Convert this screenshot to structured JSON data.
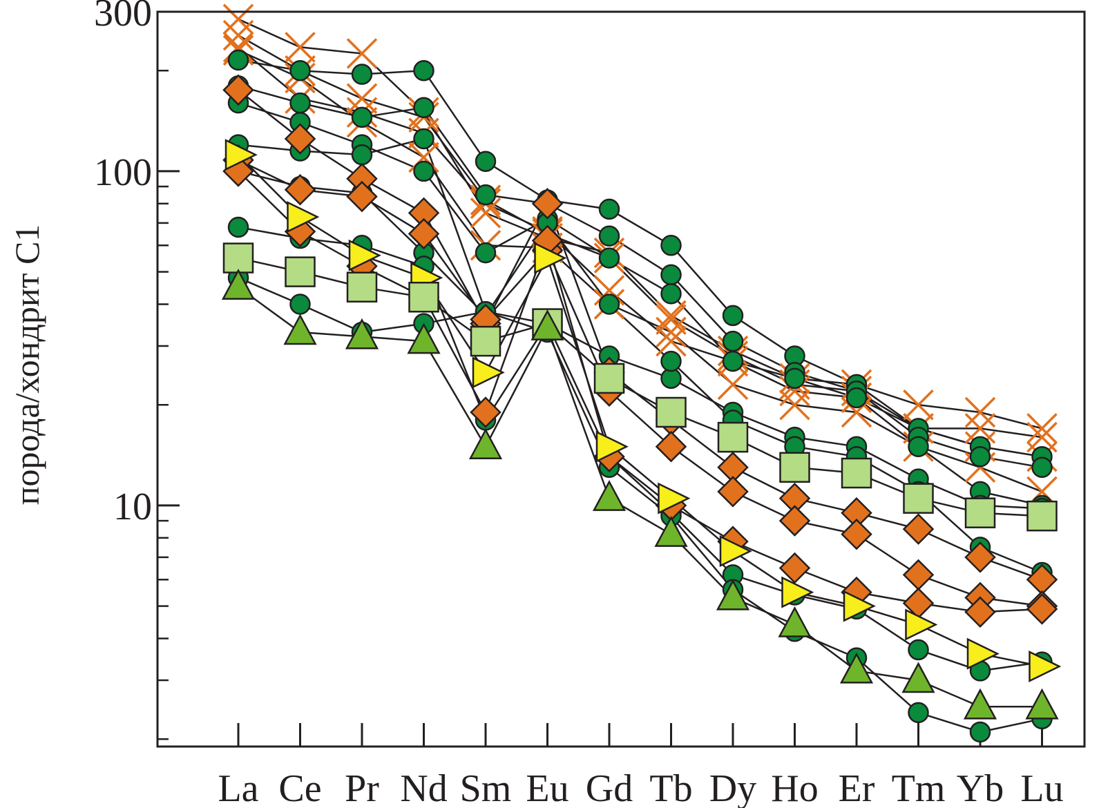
{
  "chart_data": {
    "type": "line",
    "title": "",
    "xlabel": "",
    "ylabel": "порода/хондрит С1",
    "yscale": "log",
    "ylim": [
      1.9,
      300
    ],
    "ytick_labels": [
      {
        "value": 300,
        "label": "300"
      },
      {
        "value": 100,
        "label": "100"
      },
      {
        "value": 10,
        "label": "10"
      }
    ],
    "yminor_ticks": [
      2,
      3,
      4,
      5,
      6,
      7,
      8,
      9,
      20,
      30,
      40,
      50,
      60,
      70,
      80,
      90,
      200
    ],
    "categories": [
      "La",
      "Ce",
      "Pr",
      "Nd",
      "Sm",
      "Eu",
      "Gd",
      "Tb",
      "Dy",
      "Ho",
      "Er",
      "Tm",
      "Yb",
      "Lu"
    ],
    "grid": false,
    "colors": {
      "line": "#231f20",
      "dark_green": "#0a8a3c",
      "orange": "#e2711d",
      "yellow": "#f7ee1c",
      "light_green": "#b3dc84",
      "lime_green": "#6fb52c"
    },
    "series": [
      {
        "marker": "x",
        "color": "#e2711d",
        "values": [
          285,
          235,
          225,
          150,
          75,
          63,
          57,
          37,
          29,
          24,
          23,
          20,
          19,
          17
        ]
      },
      {
        "marker": "x",
        "color": "#e2711d",
        "values": [
          255,
          200,
          165,
          145,
          82,
          65,
          55,
          36,
          28,
          23,
          22,
          17,
          17,
          16
        ]
      },
      {
        "marker": "x",
        "color": "#e2711d",
        "values": [
          235,
          165,
          150,
          130,
          80,
          66,
          44,
          31,
          27,
          22,
          21,
          17,
          15,
          14
        ]
      },
      {
        "marker": "x",
        "color": "#e2711d",
        "values": [
          230,
          190,
          140,
          110,
          60,
          59,
          40,
          33,
          23,
          20,
          19,
          15,
          13,
          11
        ]
      },
      {
        "marker": "circle",
        "color": "#0a8a3c",
        "values": [
          215,
          200,
          195,
          200,
          107,
          82,
          77,
          60,
          37,
          28,
          23,
          17,
          15,
          14
        ]
      },
      {
        "marker": "circle",
        "color": "#0a8a3c",
        "values": [
          180,
          160,
          145,
          155,
          85,
          80,
          64,
          49,
          31,
          25,
          22,
          16,
          14,
          13
        ]
      },
      {
        "marker": "circle",
        "color": "#0a8a3c",
        "values": [
          160,
          140,
          120,
          100,
          57,
          72,
          55,
          43,
          27,
          24,
          21,
          15,
          11,
          10
        ]
      },
      {
        "marker": "circle",
        "color": "#0a8a3c",
        "values": [
          120,
          115,
          112,
          125,
          38,
          35,
          28,
          24,
          19,
          16,
          15,
          12,
          10,
          9.8
        ]
      },
      {
        "marker": "circle",
        "color": "#0a8a3c",
        "values": [
          100,
          90,
          86,
          57,
          37,
          70,
          40,
          27,
          18,
          15,
          14,
          11,
          7.5,
          6.3
        ]
      },
      {
        "marker": "circle",
        "color": "#0a8a3c",
        "values": [
          68,
          63,
          60,
          52,
          18,
          35,
          14,
          9.5,
          6.2,
          5.4,
          4.9,
          3.7,
          3.2,
          3.4
        ]
      },
      {
        "marker": "circle",
        "color": "#0a8a3c",
        "values": [
          48,
          40,
          33,
          35,
          38,
          33,
          13,
          9.3,
          5.6,
          4.2,
          3.5,
          2.4,
          2.1,
          2.3
        ]
      },
      {
        "marker": "diamond",
        "color": "#e2711d",
        "values": [
          175,
          125,
          95,
          75,
          35,
          80,
          25,
          18,
          13,
          10.5,
          9.5,
          8.5,
          7,
          6
        ]
      },
      {
        "marker": "diamond",
        "color": "#e2711d",
        "values": [
          108,
          88,
          84,
          65,
          36,
          58,
          22,
          15,
          11,
          9,
          8.2,
          6.2,
          5.3,
          5
        ]
      },
      {
        "marker": "diamond",
        "color": "#e2711d",
        "values": [
          100,
          66,
          52,
          42,
          19,
          62,
          14,
          10,
          7.8,
          6.5,
          5.5,
          5.1,
          4.8,
          4.9
        ]
      },
      {
        "marker": "triangle-right",
        "color": "#f7ee1c",
        "values": [
          112,
          73,
          56,
          48,
          25,
          55,
          15,
          10.5,
          7.3,
          5.5,
          5,
          4.4,
          3.6,
          3.3
        ]
      },
      {
        "marker": "square",
        "color": "#b3dc84",
        "values": [
          55,
          50,
          45,
          42,
          31,
          35,
          24,
          19,
          16,
          13,
          12.5,
          10.5,
          9.5,
          9.3
        ]
      },
      {
        "marker": "triangle-up",
        "color": "#6fb52c",
        "values": [
          45,
          33,
          32,
          31,
          15,
          34,
          10.5,
          8.2,
          5.3,
          4.4,
          3.2,
          3,
          2.5,
          2.5
        ]
      }
    ]
  }
}
